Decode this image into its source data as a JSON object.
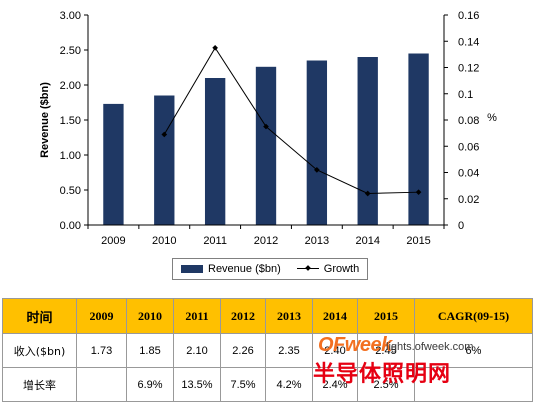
{
  "chart_data": {
    "type": "bar",
    "categories": [
      "2009",
      "2010",
      "2011",
      "2012",
      "2013",
      "2014",
      "2015"
    ],
    "series": [
      {
        "name": "Revenue ($bn)",
        "kind": "bar",
        "axis": "left",
        "color": "#1F3864",
        "values": [
          1.73,
          1.85,
          2.1,
          2.26,
          2.35,
          2.4,
          2.45
        ]
      },
      {
        "name": "Growth",
        "kind": "line",
        "axis": "right",
        "color": "#000000",
        "values": [
          null,
          0.069,
          0.135,
          0.075,
          0.042,
          0.024,
          0.025
        ]
      }
    ],
    "ylabel": "Revenue ($bn)",
    "y2label": "%",
    "ylim": [
      0,
      3.0
    ],
    "y2lim": [
      0,
      0.16
    ],
    "yticks": [
      "0.00",
      "0.50",
      "1.00",
      "1.50",
      "2.00",
      "2.50",
      "3.00"
    ],
    "y2ticks": [
      "0",
      "0.02",
      "0.04",
      "0.06",
      "0.08",
      "0.1",
      "0.12",
      "0.14",
      "0.16"
    ],
    "grid": false,
    "legend": "bottom"
  },
  "table": {
    "headers": [
      "时间",
      "2009",
      "2010",
      "2011",
      "2012",
      "2013",
      "2014",
      "2015",
      "CAGR(09-15)"
    ],
    "rows": [
      {
        "label": "收入($bn)",
        "cells": [
          "1.73",
          "1.85",
          "2.10",
          "2.26",
          "2.35",
          "2.40",
          "2.45",
          "6%"
        ]
      },
      {
        "label": "增长率",
        "cells": [
          "",
          "6.9%",
          "13.5%",
          "7.5%",
          "4.2%",
          "2.4%",
          "2.5%",
          ""
        ]
      }
    ]
  },
  "watermark": {
    "brand_of": "OF",
    "brand_week": "week",
    "site": "lights.ofweek.com",
    "cn": "半导体照明网"
  }
}
